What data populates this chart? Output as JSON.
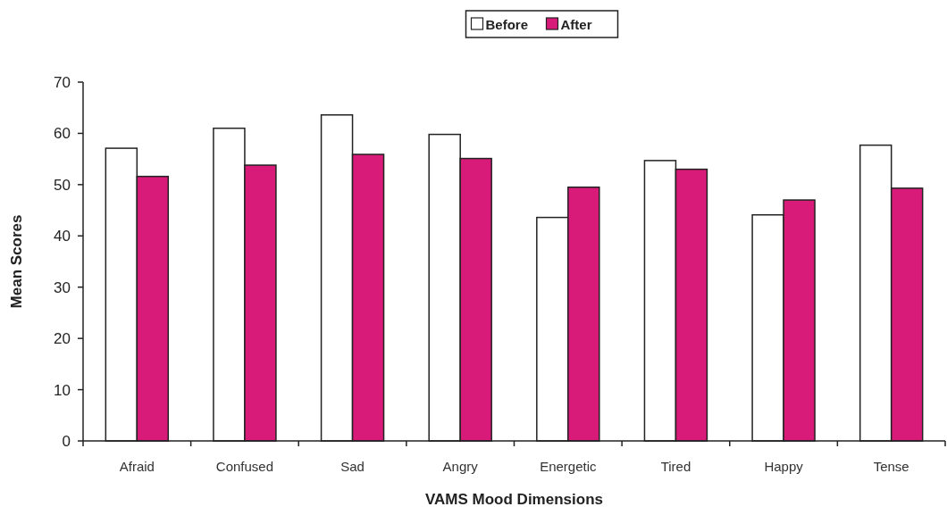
{
  "chart_data": {
    "type": "bar",
    "xlabel": "VAMS  Mood Dimensions",
    "ylabel": "Mean Scores",
    "categories": [
      "Afraid",
      "Confused",
      "Sad",
      "Angry",
      "Energetic",
      "Tired",
      "Happy",
      "Tense"
    ],
    "series": [
      {
        "name": "Before",
        "color": "#ffffff",
        "values": [
          57.1,
          61.0,
          63.6,
          59.8,
          43.6,
          54.7,
          44.1,
          57.7
        ]
      },
      {
        "name": "After",
        "color": "#d81b78",
        "values": [
          51.6,
          53.8,
          55.9,
          55.1,
          49.5,
          53.0,
          47.0,
          49.3
        ]
      }
    ],
    "ylim": [
      0,
      70
    ],
    "yticks": [
      0,
      10,
      20,
      30,
      40,
      50,
      60,
      70
    ],
    "grid": false,
    "legend": "top"
  }
}
